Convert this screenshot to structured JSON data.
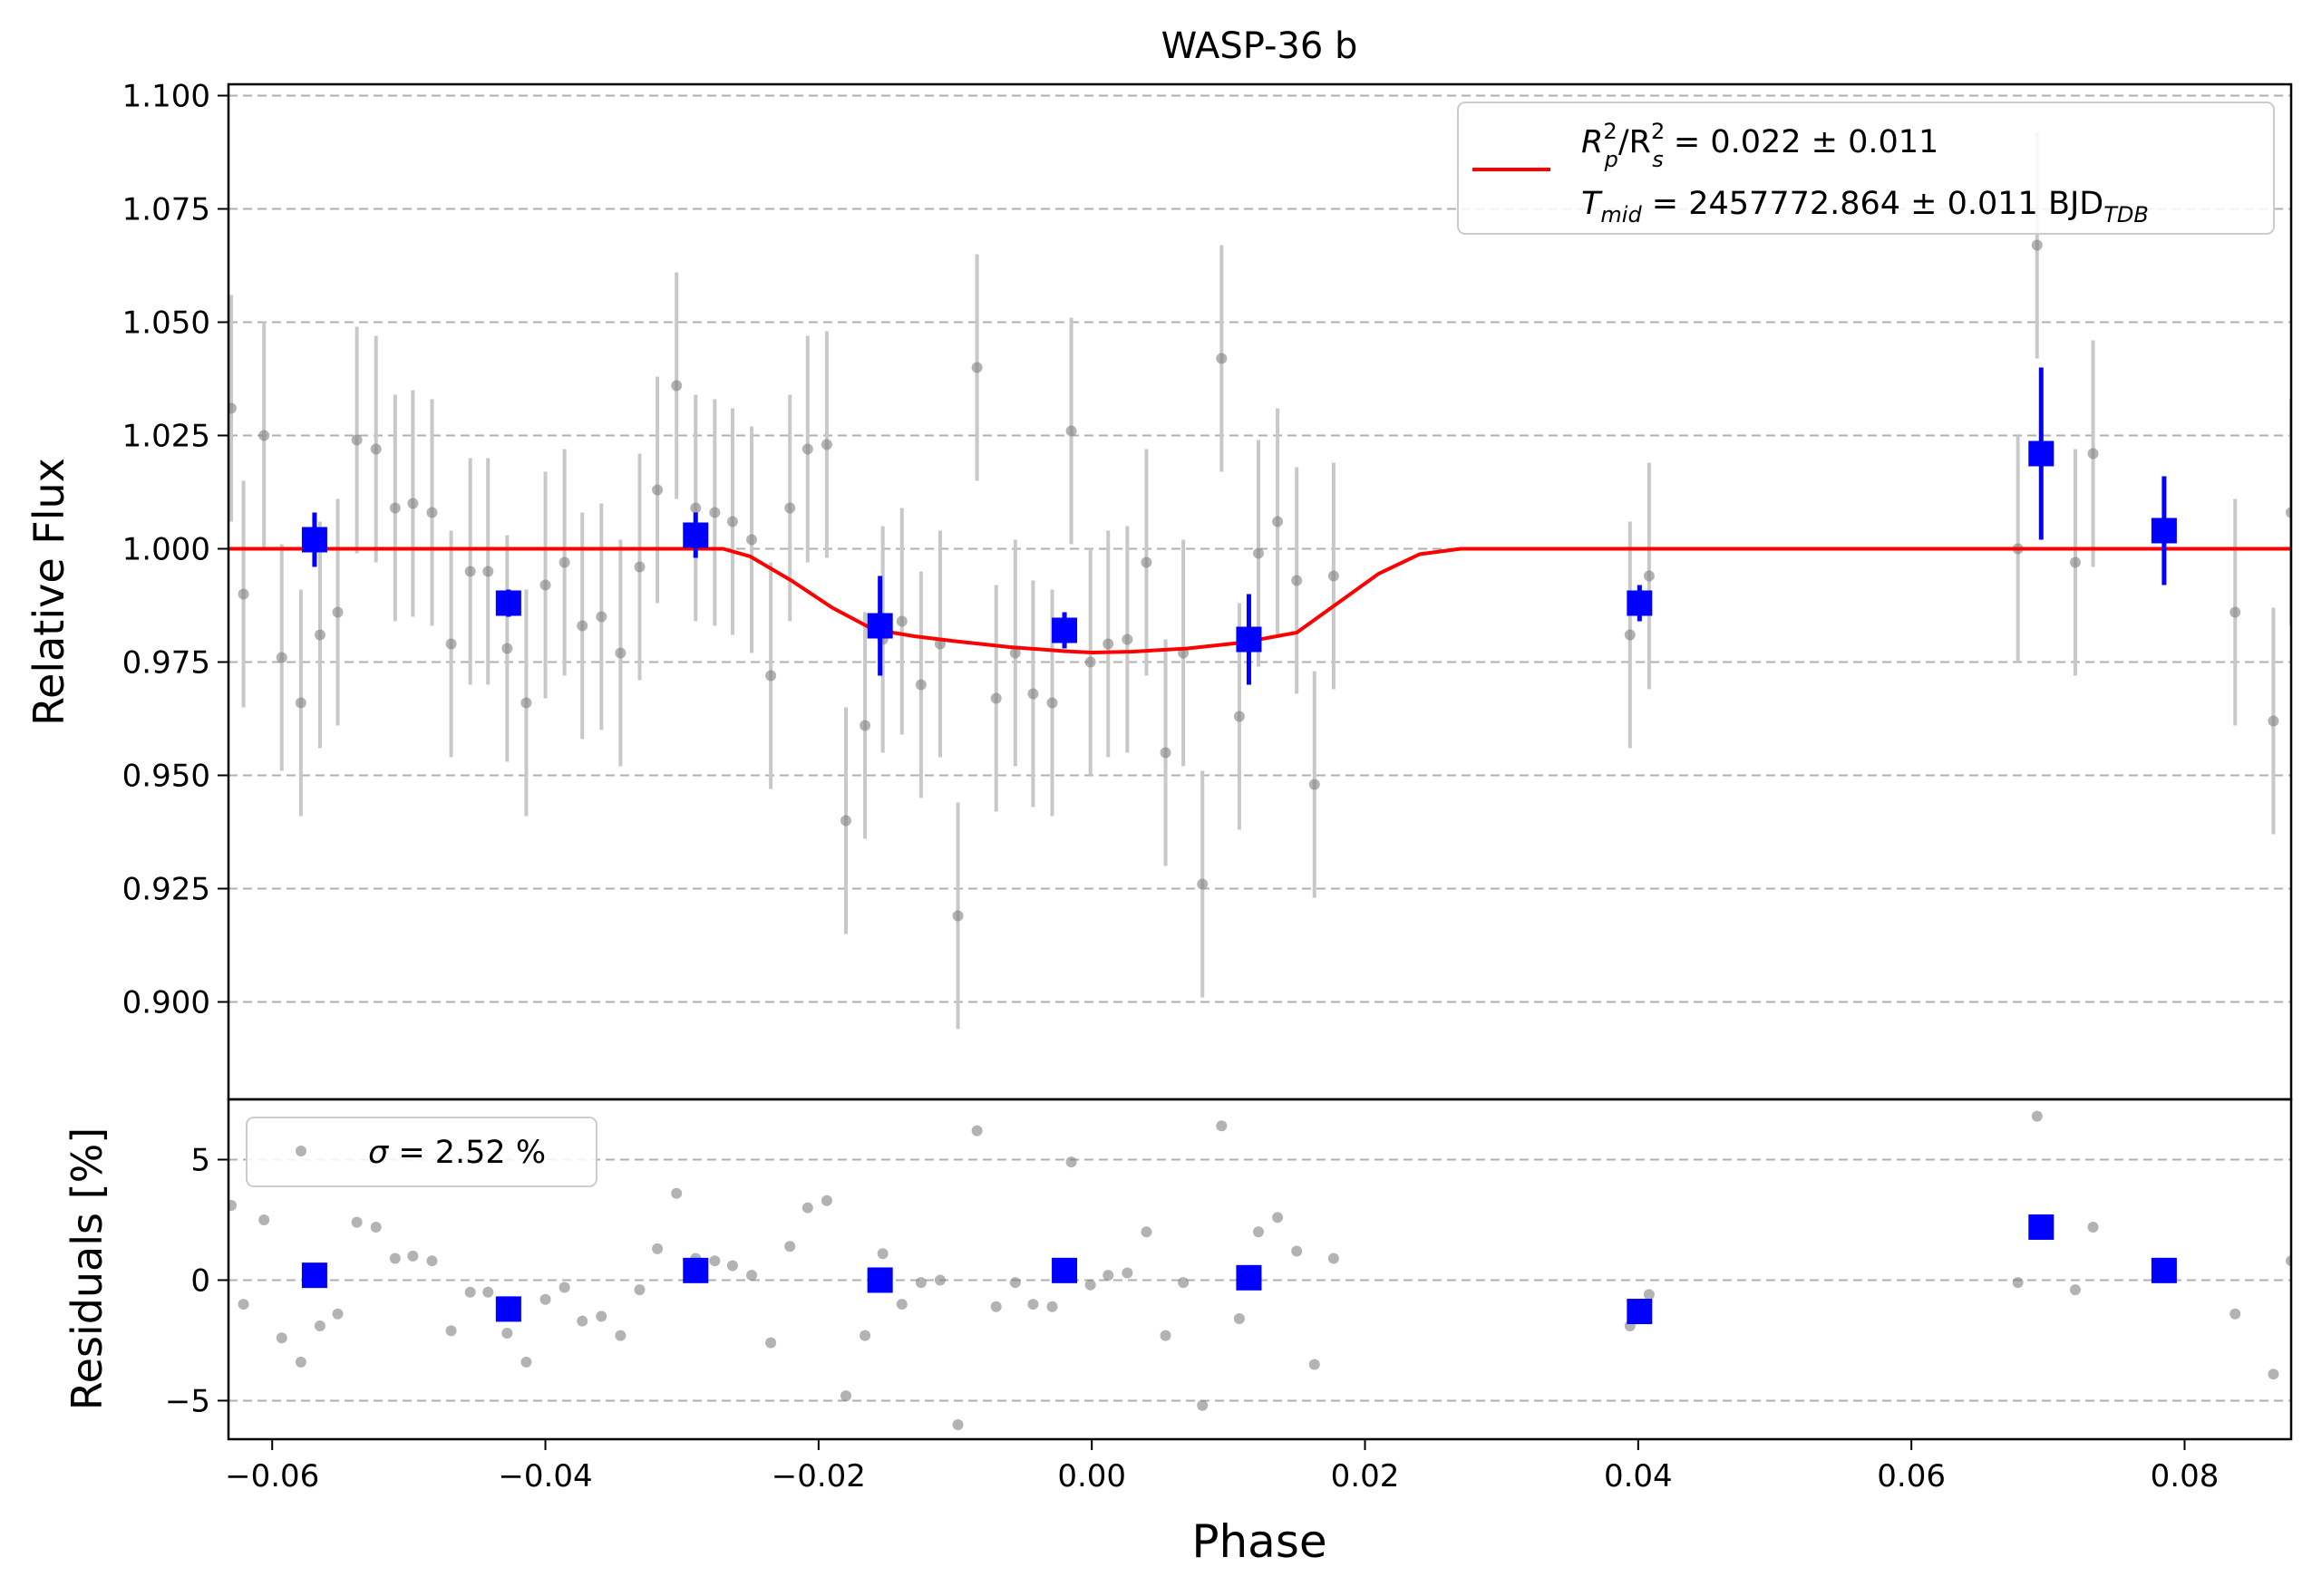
{
  "chart_data": [
    {
      "type": "scatter",
      "title": "WASP-36 b",
      "ylabel": "Relative Flux",
      "xlim": [
        -0.0632,
        0.0878
      ],
      "ylim": [
        0.8785,
        1.1025
      ],
      "y_ticks": [
        0.9,
        0.925,
        0.95,
        0.975,
        1.0,
        1.025,
        1.05,
        1.075,
        1.1
      ],
      "y_tick_labels": [
        "0.900",
        "0.925",
        "0.950",
        "0.975",
        "1.000",
        "1.025",
        "1.050",
        "1.075",
        "1.100"
      ],
      "grid": "horizontal dashed",
      "legend": {
        "placement": "upper-right",
        "line1_a": "R",
        "line1_a_sup": "2",
        "line1_a_sub": "p",
        "line1_b": "/R",
        "line1_b_sup": "2",
        "line1_b_sub": "s",
        "line1_c": " = 0.022 ± 0.011",
        "line2_a": "T",
        "line2_a_sub": "mid",
        "line2_b": " = 2457772.864 ± 0.011 BJD",
        "line2_b_sub": "TDB"
      },
      "colors": {
        "raw": "#808080",
        "raw_err": "#c8c8c8",
        "binned": "#0000ff",
        "model": "#ff0000"
      },
      "model": {
        "x": [
          -0.0632,
          -0.027,
          -0.025,
          -0.022,
          -0.019,
          -0.016,
          -0.013,
          -0.01,
          -0.006,
          -0.002,
          0.0,
          0.003,
          0.007,
          0.011,
          0.015,
          0.018,
          0.021,
          0.024,
          0.027,
          0.0878
        ],
        "y": [
          1.0,
          1.0,
          0.9983,
          0.993,
          0.987,
          0.9822,
          0.9807,
          0.9796,
          0.9783,
          0.9774,
          0.9771,
          0.9773,
          0.978,
          0.9793,
          0.9815,
          0.988,
          0.9945,
          0.9988,
          1.0,
          1.0
        ]
      },
      "raw": {
        "x": [
          -0.063,
          -0.0621,
          -0.0606,
          -0.0593,
          -0.0579,
          -0.0565,
          -0.0552,
          -0.0538,
          -0.0524,
          -0.051,
          -0.0497,
          -0.0483,
          -0.0469,
          -0.0455,
          -0.0442,
          -0.0428,
          -0.0414,
          -0.04,
          -0.0386,
          -0.0373,
          -0.0359,
          -0.0345,
          -0.0331,
          -0.0318,
          -0.0304,
          -0.029,
          -0.0276,
          -0.0263,
          -0.0249,
          -0.0235,
          -0.0221,
          -0.0208,
          -0.0194,
          -0.018,
          -0.0166,
          -0.0153,
          -0.0139,
          -0.0125,
          -0.0111,
          -0.0098,
          -0.0084,
          -0.007,
          -0.0056,
          -0.0043,
          -0.0029,
          -0.0015,
          -0.0001,
          0.0012,
          0.0026,
          0.004,
          0.0054,
          0.0067,
          0.0081,
          0.0095,
          0.0108,
          0.0122,
          0.0136,
          0.015,
          0.0163,
          0.0177,
          0.0394,
          0.0408,
          0.0678,
          0.0692,
          0.072,
          0.0733,
          0.0837,
          0.0865,
          0.0878
        ],
        "y": [
          1.031,
          0.99,
          1.025,
          0.976,
          0.966,
          0.981,
          0.986,
          1.024,
          1.022,
          1.009,
          1.01,
          1.008,
          0.979,
          0.995,
          0.995,
          0.978,
          0.966,
          0.992,
          0.997,
          0.983,
          0.985,
          0.977,
          0.996,
          1.013,
          1.036,
          1.009,
          1.008,
          1.006,
          1.002,
          0.972,
          1.009,
          1.022,
          1.023,
          0.94,
          0.961,
          0.98,
          0.984,
          0.97,
          0.979,
          0.919,
          1.04,
          0.967,
          0.977,
          0.968,
          0.966,
          1.026,
          0.975,
          0.979,
          0.98,
          0.997,
          0.955,
          0.977,
          0.926,
          1.042,
          0.963,
          0.999,
          1.006,
          0.993,
          0.948,
          0.994,
          0.981,
          0.994,
          1.0,
          1.067,
          0.997,
          1.021,
          0.986,
          0.962,
          1.008
        ],
        "yerr": 0.025
      },
      "binned": {
        "x": [
          -0.0569,
          -0.0427,
          -0.029,
          -0.0155,
          -0.002,
          0.0115,
          0.0401,
          0.0695,
          0.0785
        ],
        "y": [
          1.002,
          0.988,
          1.003,
          0.983,
          0.982,
          0.98,
          0.988,
          1.021,
          1.004
        ],
        "yerr": [
          0.006,
          0.003,
          0.005,
          0.011,
          0.004,
          0.01,
          0.004,
          0.019,
          0.012
        ]
      }
    },
    {
      "type": "scatter",
      "xlabel": "Phase",
      "ylabel": "Residuals [%]",
      "xlim": [
        -0.0632,
        0.0878
      ],
      "ylim": [
        -6.6,
        7.5
      ],
      "y_ticks": [
        -5,
        0,
        5
      ],
      "y_tick_labels": [
        "−5",
        "0",
        "5"
      ],
      "x_ticks": [
        -0.06,
        -0.04,
        -0.02,
        0.0,
        0.02,
        0.04,
        0.06,
        0.08
      ],
      "x_tick_labels": [
        "−0.06",
        "−0.04",
        "−0.02",
        "0.00",
        "0.02",
        "0.04",
        "0.06",
        "0.08"
      ],
      "grid": "horizontal dashed",
      "legend": {
        "placement": "upper-left",
        "sigma_symbol": "σ",
        "text": " = 2.52 %"
      },
      "raw": {
        "x": [
          -0.063,
          -0.0621,
          -0.0606,
          -0.0593,
          -0.0579,
          -0.0565,
          -0.0552,
          -0.0538,
          -0.0524,
          -0.051,
          -0.0497,
          -0.0483,
          -0.0469,
          -0.0455,
          -0.0442,
          -0.0428,
          -0.0414,
          -0.04,
          -0.0386,
          -0.0373,
          -0.0359,
          -0.0345,
          -0.0331,
          -0.0318,
          -0.0304,
          -0.029,
          -0.0276,
          -0.0263,
          -0.0249,
          -0.0235,
          -0.0221,
          -0.0208,
          -0.0194,
          -0.018,
          -0.0166,
          -0.0153,
          -0.0139,
          -0.0125,
          -0.0111,
          -0.0098,
          -0.0084,
          -0.007,
          -0.0056,
          -0.0043,
          -0.0029,
          -0.0015,
          -0.0001,
          0.0012,
          0.0026,
          0.004,
          0.0054,
          0.0067,
          0.0081,
          0.0095,
          0.0108,
          0.0122,
          0.0136,
          0.015,
          0.0163,
          0.0177,
          0.0394,
          0.0408,
          0.0678,
          0.0692,
          0.072,
          0.0733,
          0.0837,
          0.0865,
          0.0878
        ],
        "y": [
          3.1,
          -1.0,
          2.5,
          -2.4,
          -3.4,
          -1.9,
          -1.4,
          2.4,
          2.2,
          0.9,
          1.0,
          0.8,
          -2.1,
          -0.5,
          -0.5,
          -2.2,
          -3.4,
          -0.8,
          -0.3,
          -1.7,
          -1.5,
          -2.3,
          -0.4,
          1.3,
          3.6,
          0.9,
          0.8,
          0.6,
          0.2,
          -2.6,
          1.4,
          3.0,
          3.3,
          -4.8,
          -2.3,
          1.1,
          -1.0,
          -0.1,
          0.0,
          -6.0,
          6.2,
          -1.1,
          -0.1,
          -1.0,
          -1.1,
          4.9,
          -0.2,
          0.2,
          0.3,
          2.0,
          -2.3,
          -0.1,
          -5.2,
          6.4,
          -1.6,
          2.0,
          2.6,
          1.2,
          -3.5,
          0.9,
          -1.9,
          -0.6,
          -0.1,
          6.8,
          -0.4,
          2.2,
          -1.4,
          -3.9,
          0.8
        ]
      },
      "binned": {
        "x": [
          -0.0569,
          -0.0427,
          -0.029,
          -0.0155,
          -0.002,
          0.0115,
          0.0401,
          0.0695,
          0.0785
        ],
        "y": [
          0.2,
          -1.2,
          0.4,
          0.0,
          0.4,
          0.1,
          -1.3,
          2.2,
          0.4
        ]
      }
    }
  ]
}
